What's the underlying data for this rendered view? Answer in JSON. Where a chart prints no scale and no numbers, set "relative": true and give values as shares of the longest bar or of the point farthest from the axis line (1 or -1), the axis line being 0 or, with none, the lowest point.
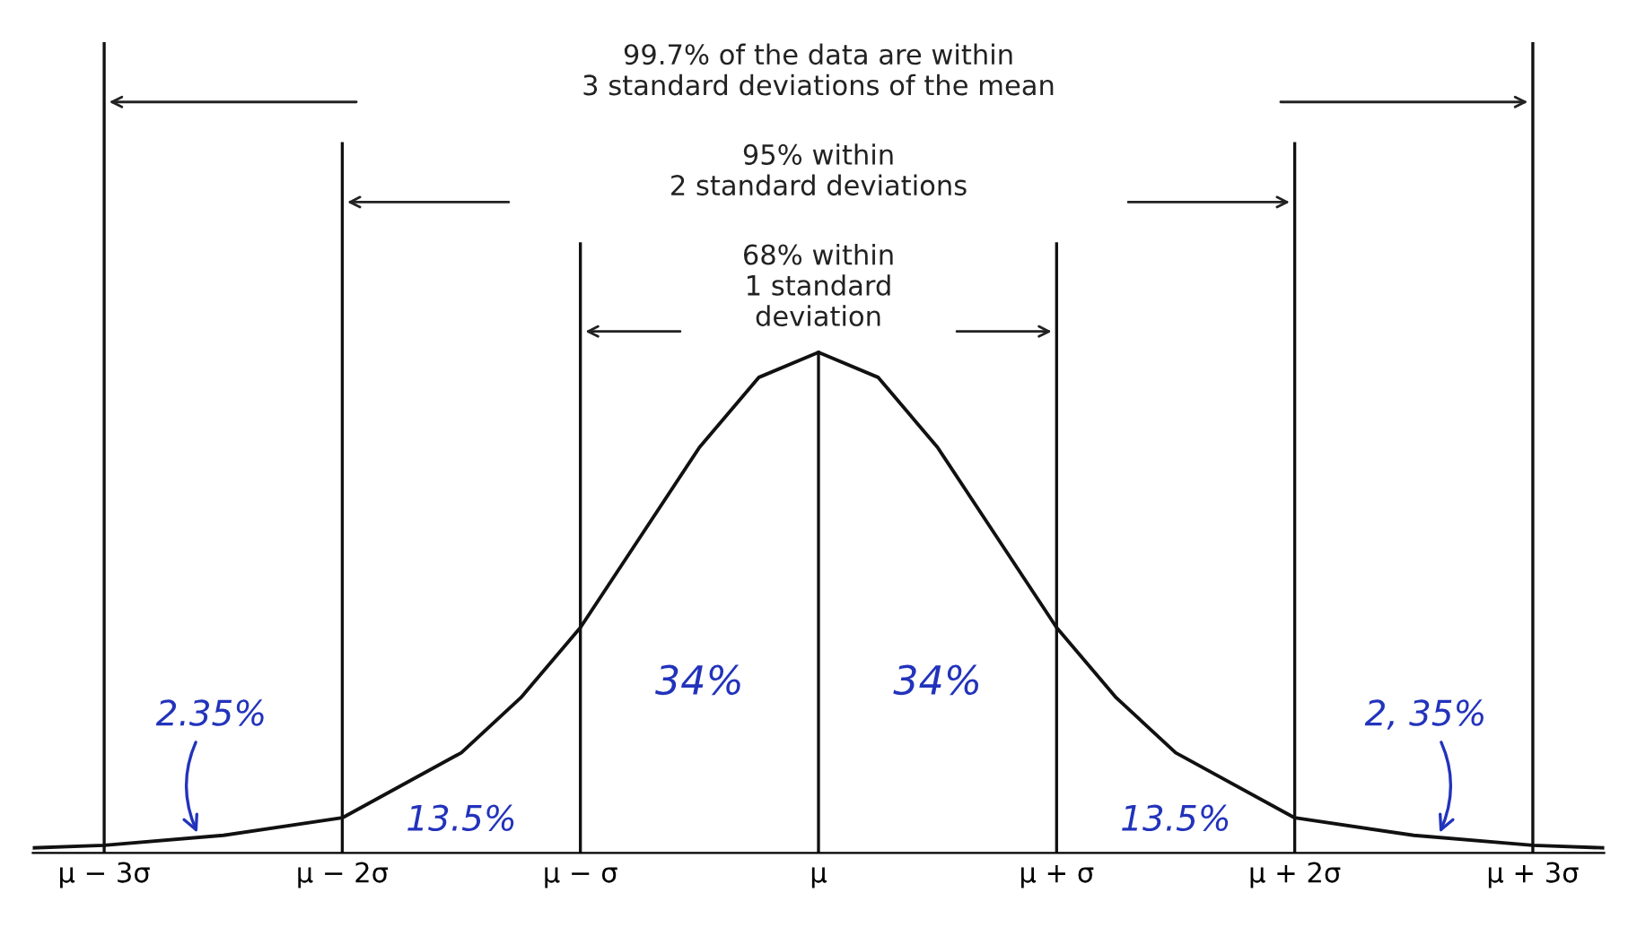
{
  "chart_data": {
    "type": "line",
    "relative": true,
    "tick_labels": "x",
    "grid": false,
    "legend": false,
    "marker": "none",
    "line_style": "solid",
    "xlim": [
      -3.3,
      3.3
    ],
    "xticks": [
      {
        "value": -3,
        "label": "μ − 3σ"
      },
      {
        "value": -2,
        "label": "μ − 2σ"
      },
      {
        "value": -1,
        "label": "μ − σ"
      },
      {
        "value": 0,
        "label": "μ"
      },
      {
        "value": 1,
        "label": "μ + σ"
      },
      {
        "value": 2,
        "label": "μ + 2σ"
      },
      {
        "value": 3,
        "label": "μ + 3σ"
      }
    ],
    "series": [
      {
        "color": "#111111",
        "x": [
          -3.3,
          -3,
          -2.5,
          -2,
          -1.5,
          -1.25,
          -1,
          -0.75,
          -0.5,
          -0.25,
          0,
          0.25,
          0.5,
          0.75,
          1,
          1.25,
          1.5,
          2,
          2.5,
          3,
          3.3
        ],
        "values": [
          0.01,
          0.015,
          0.035,
          0.07,
          0.2,
          0.31,
          0.45,
          0.63,
          0.81,
          0.95,
          1,
          0.95,
          0.81,
          0.63,
          0.45,
          0.31,
          0.2,
          0.07,
          0.035,
          0.015,
          0.01
        ]
      }
    ],
    "ref_lines": [
      {
        "axis": "x",
        "value": -3,
        "color": "#111111"
      },
      {
        "axis": "x",
        "value": 3,
        "color": "#111111"
      },
      {
        "axis": "x",
        "value": -2,
        "color": "#111111"
      },
      {
        "axis": "x",
        "value": 2,
        "color": "#111111"
      },
      {
        "axis": "x",
        "value": -1,
        "color": "#111111"
      },
      {
        "axis": "x",
        "value": 1,
        "color": "#111111"
      },
      {
        "axis": "x",
        "value": 0,
        "color": "#111111"
      }
    ],
    "annotations": [
      "99.7% of the data are within\n3 standard deviations of the mean",
      "95% within\n2 standard deviations",
      "68% within\n1 standard\ndeviation",
      "2.35%",
      "13.5%",
      "34%",
      "34%",
      "13.5%",
      "2, 35%"
    ]
  }
}
